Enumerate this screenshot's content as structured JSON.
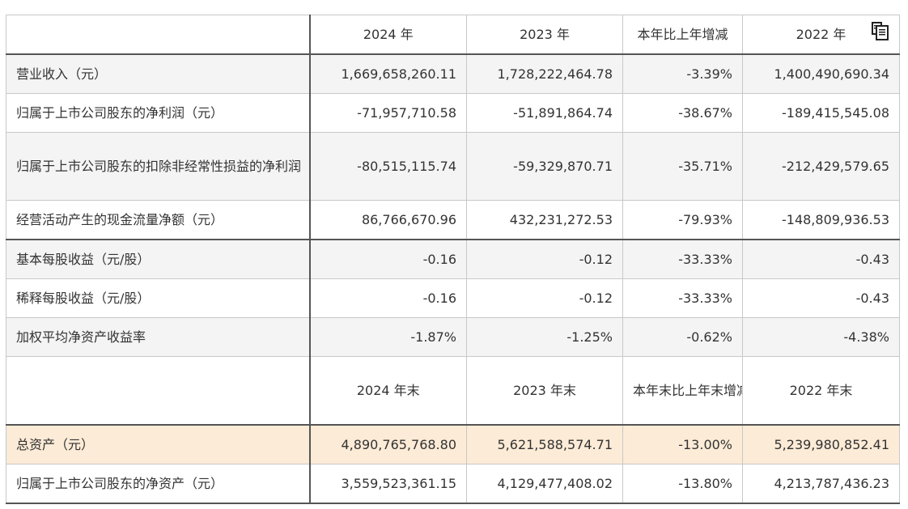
{
  "table": {
    "header": [
      "",
      "2024 年",
      "2023 年",
      "本年比上年增减",
      "2022 年"
    ],
    "rows": [
      {
        "label": "营业收入（元）",
        "v2024": "1,669,658,260.11",
        "v2023": "1,728,222,464.78",
        "change": "-3.39%",
        "v2022": "1,400,490,690.34"
      },
      {
        "label": "归属于上市公司股东的净利润（元）",
        "v2024": "-71,957,710.58",
        "v2023": "-51,891,864.74",
        "change": "-38.67%",
        "v2022": "-189,415,545.08"
      },
      {
        "label": "归属于上市公司股东的扣除非经常性损益的净利润（元）",
        "v2024": "-80,515,115.74",
        "v2023": "-59,329,870.71",
        "change": "-35.71%",
        "v2022": "-212,429,579.65"
      },
      {
        "label": "经营活动产生的现金流量净额（元）",
        "v2024": "86,766,670.96",
        "v2023": "432,231,272.53",
        "change": "-79.93%",
        "v2022": "-148,809,936.53"
      },
      {
        "label": "基本每股收益（元/股）",
        "v2024": "-0.16",
        "v2023": "-0.12",
        "change": "-33.33%",
        "v2022": "-0.43"
      },
      {
        "label": "稀释每股收益（元/股）",
        "v2024": "-0.16",
        "v2023": "-0.12",
        "change": "-33.33%",
        "v2022": "-0.43"
      },
      {
        "label": "加权平均净资产收益率",
        "v2024": "-1.87%",
        "v2023": "-1.25%",
        "change": "-0.62%",
        "v2022": "-4.38%"
      }
    ],
    "header2": [
      "",
      "2024 年末",
      "2023 年末",
      "本年末比上年末增减",
      "2022 年末"
    ],
    "rows2": [
      {
        "label": "总资产（元）",
        "v2024": "4,890,765,768.80",
        "v2023": "5,621,588,574.71",
        "change": "-13.00%",
        "v2022": "5,239,980,852.41"
      },
      {
        "label": "归属于上市公司股东的净资产（元）",
        "v2024": "3,559,523,361.15",
        "v2023": "4,129,477,408.02",
        "change": "-13.80%",
        "v2022": "4,213,787,436.23"
      }
    ]
  },
  "icons": {
    "copy": "copy-icon"
  },
  "colors": {
    "highlight_row": "#fcebd6",
    "shaded_row": "#f4f4f4",
    "border": "#c8c8c8"
  }
}
